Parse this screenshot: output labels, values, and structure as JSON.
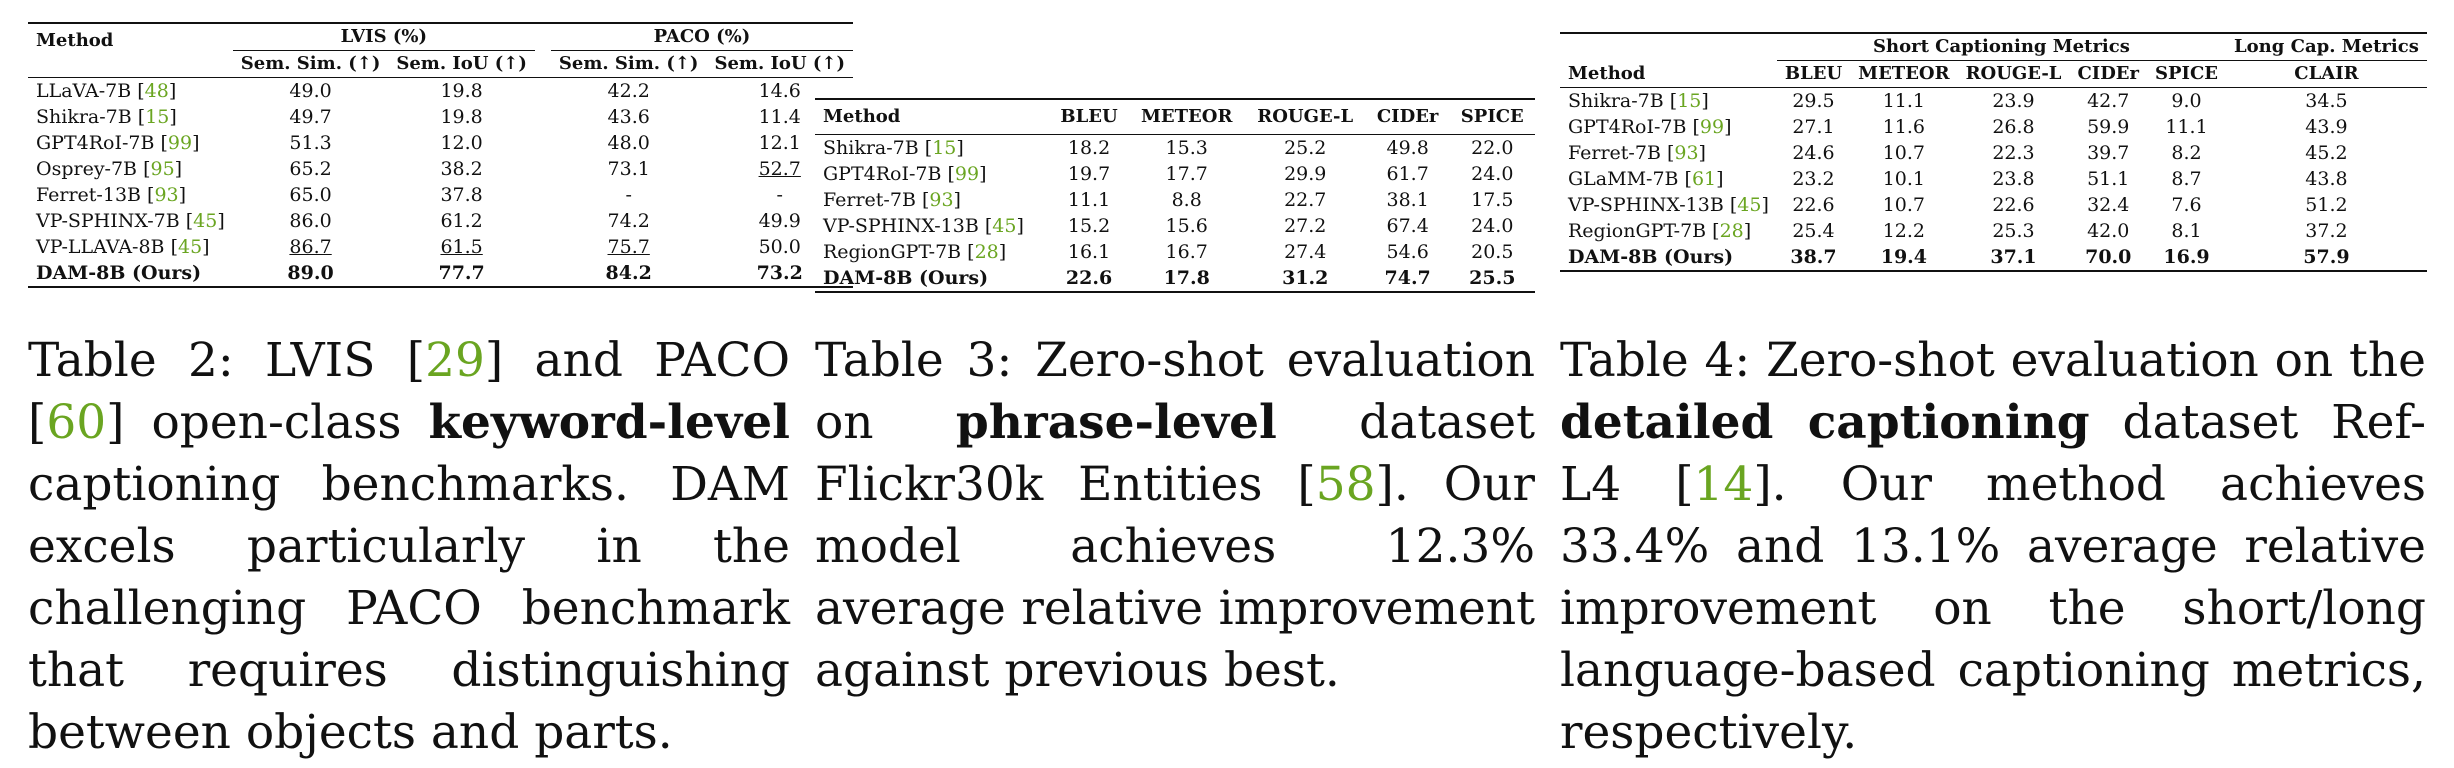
{
  "table2": {
    "header": {
      "method": "Method",
      "lvis": "LVIS (%)",
      "paco": "PACO (%)",
      "sem_sim": "Sem. Sim. (↑)",
      "sem_iou": "Sem. IoU (↑)"
    },
    "rows": [
      {
        "name": "LLaVA-7B",
        "cite": "48",
        "v": [
          "49.0",
          "19.8",
          "42.2",
          "14.6"
        ]
      },
      {
        "name": "Shikra-7B",
        "cite": "15",
        "v": [
          "49.7",
          "19.8",
          "43.6",
          "11.4"
        ]
      },
      {
        "name": "GPT4RoI-7B",
        "cite": "99",
        "v": [
          "51.3",
          "12.0",
          "48.0",
          "12.1"
        ]
      },
      {
        "name": "Osprey-7B",
        "cite": "95",
        "v": [
          "65.2",
          "38.2",
          "73.1",
          "52.7"
        ]
      },
      {
        "name": "Ferret-13B",
        "cite": "93",
        "v": [
          "65.0",
          "37.8",
          "-",
          "-"
        ]
      },
      {
        "name": "VP-SPHINX-7B",
        "cite": "45",
        "v": [
          "86.0",
          "61.2",
          "74.2",
          "49.9"
        ]
      },
      {
        "name": "VP-LLAVA-8B",
        "cite": "45",
        "v": [
          "86.7",
          "61.5",
          "75.7",
          "50.0"
        ]
      },
      {
        "name": "DAM-8B (Ours)",
        "cite": "",
        "v": [
          "89.0",
          "77.7",
          "84.2",
          "73.2"
        ]
      }
    ],
    "caption": {
      "p1": "Table 2: LVIS [",
      "c1": "29",
      "p2": "] and PACO [",
      "c2": "60",
      "p3": "] open-class ",
      "bold": "keyword-level",
      "p4": " captioning benchmarks. DAM excels particularly in the challenging PACO benchmark that requires distinguishing between objects and parts."
    }
  },
  "table3": {
    "header": [
      "Method",
      "BLEU",
      "METEOR",
      "ROUGE-L",
      "CIDEr",
      "SPICE"
    ],
    "rows": [
      {
        "name": "Shikra-7B",
        "cite": "15",
        "v": [
          "18.2",
          "15.3",
          "25.2",
          "49.8",
          "22.0"
        ]
      },
      {
        "name": "GPT4RoI-7B",
        "cite": "99",
        "v": [
          "19.7",
          "17.7",
          "29.9",
          "61.7",
          "24.0"
        ]
      },
      {
        "name": "Ferret-7B",
        "cite": "93",
        "v": [
          "11.1",
          "8.8",
          "22.7",
          "38.1",
          "17.5"
        ]
      },
      {
        "name": "VP-SPHINX-13B",
        "cite": "45",
        "v": [
          "15.2",
          "15.6",
          "27.2",
          "67.4",
          "24.0"
        ]
      },
      {
        "name": "RegionGPT-7B",
        "cite": "28",
        "v": [
          "16.1",
          "16.7",
          "27.4",
          "54.6",
          "20.5"
        ]
      },
      {
        "name": "DAM-8B (Ours)",
        "cite": "",
        "v": [
          "22.6",
          "17.8",
          "31.2",
          "74.7",
          "25.5"
        ]
      }
    ],
    "caption": {
      "p1": "Table 3: Zero-shot evaluation on ",
      "bold": "phrase-level",
      "p2": " dataset Flickr30k Entities [",
      "c1": "58",
      "p3": "]. Our model achieves 12.3% average relative improvement against previous best."
    }
  },
  "table4": {
    "header": {
      "method": "Method",
      "short": "Short Captioning Metrics",
      "long": "Long Cap. Metrics",
      "cols": [
        "BLEU",
        "METEOR",
        "ROUGE-L",
        "CIDEr",
        "SPICE",
        "CLAIR"
      ]
    },
    "rows": [
      {
        "name": "Shikra-7B",
        "cite": "15",
        "v": [
          "29.5",
          "11.1",
          "23.9",
          "42.7",
          "9.0",
          "34.5"
        ]
      },
      {
        "name": "GPT4RoI-7B",
        "cite": "99",
        "v": [
          "27.1",
          "11.6",
          "26.8",
          "59.9",
          "11.1",
          "43.9"
        ]
      },
      {
        "name": "Ferret-7B",
        "cite": "93",
        "v": [
          "24.6",
          "10.7",
          "22.3",
          "39.7",
          "8.2",
          "45.2"
        ]
      },
      {
        "name": "GLaMM-7B",
        "cite": "61",
        "v": [
          "23.2",
          "10.1",
          "23.8",
          "51.1",
          "8.7",
          "43.8"
        ]
      },
      {
        "name": "VP-SPHINX-13B",
        "cite": "45",
        "v": [
          "22.6",
          "10.7",
          "22.6",
          "32.4",
          "7.6",
          "51.2"
        ]
      },
      {
        "name": "RegionGPT-7B",
        "cite": "28",
        "v": [
          "25.4",
          "12.2",
          "25.3",
          "42.0",
          "8.1",
          "37.2"
        ]
      },
      {
        "name": "DAM-8B (Ours)",
        "cite": "",
        "v": [
          "38.7",
          "19.4",
          "37.1",
          "70.0",
          "16.9",
          "57.9"
        ]
      }
    ],
    "caption": {
      "p1": "Table 4: Zero-shot evaluation on the ",
      "bold": "detailed captioning",
      "p2": " dataset Ref-L4 [",
      "c1": "14",
      "p3": "]. Our method achieves 33.4% and 13.1% average relative improvement on the short/long language-based captioning metrics, respectively."
    }
  }
}
